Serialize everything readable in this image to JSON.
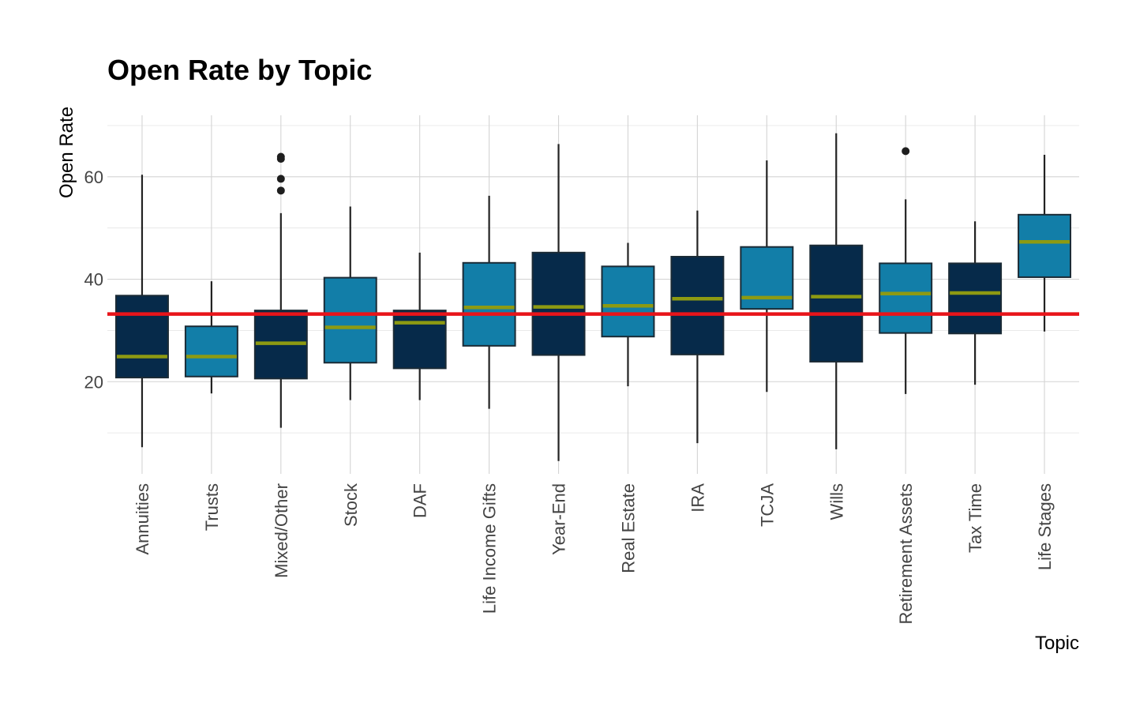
{
  "chart_data": {
    "type": "box",
    "title": "Open Rate by Topic",
    "xlabel": "Topic",
    "ylabel": "Open Rate",
    "ylim": [
      2,
      72
    ],
    "y_ticks": [
      20,
      40,
      60
    ],
    "grid": true,
    "legend": "none",
    "reference_line": {
      "value": 33.2,
      "color": "#e8141a"
    },
    "colors": {
      "dark": "#062a4a",
      "light": "#127ea8",
      "median": "#8d9a12",
      "whisker": "#222222",
      "outlier": "#1e1e1e"
    },
    "categories": [
      "Annuities",
      "Trusts",
      "Mixed/Other",
      "Stock",
      "DAF",
      "Life Income Gifts",
      "Year-End",
      "Real Estate",
      "IRA",
      "TCJA",
      "Wills",
      "Retirement Assets",
      "Tax Time",
      "Life Stages"
    ],
    "boxes": [
      {
        "category": "Annuities",
        "fill": "dark",
        "whisker_low": 7.2,
        "q1": 20.8,
        "median": 24.9,
        "q3": 36.8,
        "whisker_high": 60.4,
        "outliers": []
      },
      {
        "category": "Trusts",
        "fill": "light",
        "whisker_low": 17.7,
        "q1": 21.0,
        "median": 24.9,
        "q3": 30.8,
        "whisker_high": 39.6,
        "outliers": []
      },
      {
        "category": "Mixed/Other",
        "fill": "dark",
        "whisker_low": 11.0,
        "q1": 20.6,
        "median": 27.5,
        "q3": 33.9,
        "whisker_high": 52.9,
        "outliers": [
          57.3,
          59.6,
          63.5,
          63.9
        ]
      },
      {
        "category": "Stock",
        "fill": "light",
        "whisker_low": 16.4,
        "q1": 23.7,
        "median": 30.6,
        "q3": 40.3,
        "whisker_high": 54.2,
        "outliers": []
      },
      {
        "category": "DAF",
        "fill": "dark",
        "whisker_low": 16.4,
        "q1": 22.6,
        "median": 31.5,
        "q3": 33.9,
        "whisker_high": 45.2,
        "outliers": []
      },
      {
        "category": "Life Income Gifts",
        "fill": "light",
        "whisker_low": 14.7,
        "q1": 27.0,
        "median": 34.5,
        "q3": 43.2,
        "whisker_high": 56.3,
        "outliers": []
      },
      {
        "category": "Year-End",
        "fill": "dark",
        "whisker_low": 4.5,
        "q1": 25.2,
        "median": 34.6,
        "q3": 45.2,
        "whisker_high": 66.4,
        "outliers": []
      },
      {
        "category": "Real Estate",
        "fill": "light",
        "whisker_low": 19.1,
        "q1": 28.8,
        "median": 34.8,
        "q3": 42.5,
        "whisker_high": 47.1,
        "outliers": []
      },
      {
        "category": "IRA",
        "fill": "dark",
        "whisker_low": 8.0,
        "q1": 25.3,
        "median": 36.2,
        "q3": 44.4,
        "whisker_high": 53.4,
        "outliers": []
      },
      {
        "category": "TCJA",
        "fill": "light",
        "whisker_low": 18.0,
        "q1": 34.2,
        "median": 36.4,
        "q3": 46.3,
        "whisker_high": 63.2,
        "outliers": []
      },
      {
        "category": "Wills",
        "fill": "dark",
        "whisker_low": 6.8,
        "q1": 23.9,
        "median": 36.6,
        "q3": 46.6,
        "whisker_high": 68.5,
        "outliers": []
      },
      {
        "category": "Retirement Assets",
        "fill": "light",
        "whisker_low": 17.6,
        "q1": 29.5,
        "median": 37.2,
        "q3": 43.1,
        "whisker_high": 55.6,
        "outliers": [
          65.0
        ]
      },
      {
        "category": "Tax Time",
        "fill": "dark",
        "whisker_low": 19.4,
        "q1": 29.4,
        "median": 37.3,
        "q3": 43.1,
        "whisker_high": 51.3,
        "outliers": []
      },
      {
        "category": "Life Stages",
        "fill": "light",
        "whisker_low": 29.8,
        "q1": 40.4,
        "median": 47.3,
        "q3": 52.6,
        "whisker_high": 64.3,
        "outliers": []
      }
    ]
  }
}
